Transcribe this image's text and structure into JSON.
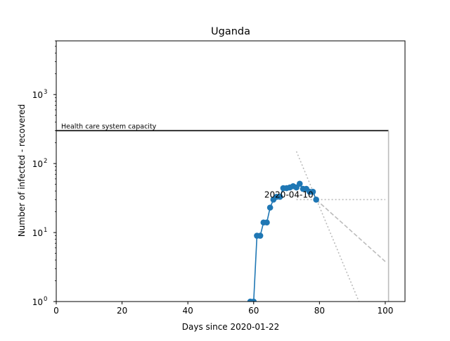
{
  "chart_data": {
    "type": "line",
    "title": "Uganda",
    "xlabel": "Days since 2020-01-22",
    "ylabel": "Number of infected - recovered",
    "xlim": [
      0,
      106
    ],
    "ylim": [
      1,
      6000
    ],
    "yscale": "log",
    "grid": false,
    "x_ticks": [
      0,
      20,
      40,
      60,
      80,
      100
    ],
    "x_tick_labels": [
      "0",
      "20",
      "40",
      "60",
      "80",
      "100"
    ],
    "y_ticks": [
      1,
      10,
      100,
      1000
    ],
    "y_tick_bases": [
      "10",
      "10",
      "10",
      "10"
    ],
    "y_tick_exponents": [
      "0",
      "1",
      "2",
      "3"
    ],
    "series": [
      {
        "color": "#1f77b4",
        "x": [
          59,
          60,
          61,
          62,
          63,
          64,
          65,
          66,
          67,
          68,
          69,
          70,
          71,
          72,
          73,
          74,
          75,
          76,
          77,
          78,
          79
        ],
        "y": [
          1,
          1,
          9,
          9,
          14,
          14,
          23,
          30,
          33,
          33,
          44,
          44,
          45,
          47,
          45,
          51,
          43,
          43,
          39,
          39,
          30
        ]
      }
    ],
    "capacity_line": {
      "label": "Health care system capacity",
      "y": 300,
      "x_start": 0,
      "x_end": 101,
      "drop_to": 1
    },
    "annotation": {
      "text": "2020-04-10",
      "x": 79,
      "y": 30
    },
    "trend_lines": [
      {
        "style": "dotted",
        "color": "#bbbbbb",
        "points": [
          [
            73,
            30
          ],
          [
            100,
            30
          ]
        ]
      },
      {
        "style": "dotted",
        "color": "#bbbbbb",
        "points": [
          [
            73,
            150
          ],
          [
            92,
            1
          ]
        ]
      },
      {
        "style": "dashed",
        "color": "#bbbbbb",
        "points": [
          [
            79,
            30
          ],
          [
            100,
            3.8
          ]
        ]
      }
    ]
  }
}
